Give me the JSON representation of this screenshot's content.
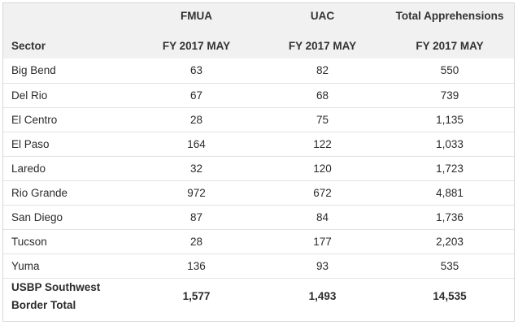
{
  "table": {
    "group_headers": {
      "fmua": "FMUA",
      "uac": "UAC",
      "total": "Total Apprehensions"
    },
    "sub_headers": {
      "sector": "Sector",
      "fmua": "FY 2017 MAY",
      "uac": "FY 2017 MAY",
      "total": "FY 2017 MAY"
    },
    "rows": [
      {
        "sector": "Big Bend",
        "fmua": "63",
        "uac": "82",
        "total": "550"
      },
      {
        "sector": "Del Rio",
        "fmua": "67",
        "uac": "68",
        "total": "739"
      },
      {
        "sector": "El Centro",
        "fmua": "28",
        "uac": "75",
        "total": "1,135"
      },
      {
        "sector": "El Paso",
        "fmua": "164",
        "uac": "122",
        "total": "1,033"
      },
      {
        "sector": "Laredo",
        "fmua": "32",
        "uac": "120",
        "total": "1,723"
      },
      {
        "sector": "Rio Grande",
        "fmua": "972",
        "uac": "672",
        "total": "4,881"
      },
      {
        "sector": "San Diego",
        "fmua": "87",
        "uac": "84",
        "total": "1,736"
      },
      {
        "sector": "Tucson",
        "fmua": "28",
        "uac": "177",
        "total": "2,203"
      },
      {
        "sector": "Yuma",
        "fmua": "136",
        "uac": "93",
        "total": "535"
      }
    ],
    "total_row": {
      "sector_line1": "USBP Southwest",
      "sector_line2": "Border Total",
      "fmua": "1,577",
      "uac": "1,493",
      "total": "14,535"
    }
  }
}
